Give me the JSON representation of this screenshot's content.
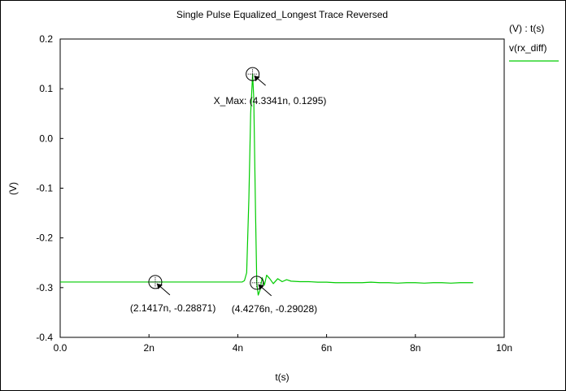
{
  "chart_data": {
    "type": "line",
    "title": "Single Pulse Equalized_Longest Trace Reversed",
    "xlabel": "t(s)",
    "ylabel": "(V)",
    "xlim": [
      0,
      10
    ],
    "ylim": [
      -0.4,
      0.2
    ],
    "x_ticks": [
      {
        "value": 0,
        "label": "0.0"
      },
      {
        "value": 2,
        "label": "2n"
      },
      {
        "value": 4,
        "label": "4n"
      },
      {
        "value": 6,
        "label": "6n"
      },
      {
        "value": 8,
        "label": "8n"
      },
      {
        "value": 10,
        "label": "10n"
      }
    ],
    "y_ticks": [
      {
        "value": 0.2,
        "label": "0.2"
      },
      {
        "value": 0.1,
        "label": "0.1"
      },
      {
        "value": 0.0,
        "label": "0.0"
      },
      {
        "value": -0.1,
        "label": "-0.1"
      },
      {
        "value": -0.2,
        "label": "-0.2"
      },
      {
        "value": -0.3,
        "label": "-0.3"
      },
      {
        "value": -0.4,
        "label": "-0.4"
      }
    ],
    "grid": false,
    "legend": {
      "placement": "right",
      "header": "(V) : t(s)",
      "entries": [
        {
          "name": "v(rx_diff)",
          "color": "#00cc00"
        }
      ]
    },
    "series": [
      {
        "name": "v(rx_diff)",
        "color": "#00cc00",
        "points": [
          [
            0.0,
            -0.2887
          ],
          [
            2.1417,
            -0.28871
          ],
          [
            4.0,
            -0.2887
          ],
          [
            4.1,
            -0.2886
          ],
          [
            4.15,
            -0.286
          ],
          [
            4.2,
            -0.27
          ],
          [
            4.25,
            -0.12
          ],
          [
            4.29,
            0.05
          ],
          [
            4.3341,
            0.1295
          ],
          [
            4.36,
            0.08
          ],
          [
            4.4,
            -0.15
          ],
          [
            4.4276,
            -0.29028
          ],
          [
            4.46,
            -0.315
          ],
          [
            4.5,
            -0.305
          ],
          [
            4.55,
            -0.28
          ],
          [
            4.6,
            -0.295
          ],
          [
            4.65,
            -0.275
          ],
          [
            4.72,
            -0.282
          ],
          [
            4.8,
            -0.292
          ],
          [
            4.9,
            -0.282
          ],
          [
            5.0,
            -0.288
          ],
          [
            5.1,
            -0.284
          ],
          [
            5.2,
            -0.287
          ],
          [
            5.4,
            -0.288
          ],
          [
            5.6,
            -0.288
          ],
          [
            5.8,
            -0.289
          ],
          [
            6.0,
            -0.289
          ],
          [
            6.2,
            -0.29
          ],
          [
            6.4,
            -0.29
          ],
          [
            6.6,
            -0.29
          ],
          [
            6.8,
            -0.29
          ],
          [
            7.0,
            -0.289
          ],
          [
            7.2,
            -0.29
          ],
          [
            7.4,
            -0.29
          ],
          [
            7.6,
            -0.291
          ],
          [
            7.8,
            -0.29
          ],
          [
            8.0,
            -0.29
          ],
          [
            8.2,
            -0.291
          ],
          [
            8.4,
            -0.29
          ],
          [
            8.6,
            -0.29
          ],
          [
            8.8,
            -0.291
          ],
          [
            9.0,
            -0.29
          ],
          [
            9.2,
            -0.29
          ],
          [
            9.3,
            -0.29
          ]
        ]
      }
    ],
    "annotations": [
      {
        "x": 4.3341,
        "y": 0.1295,
        "label": "X_Max: (4.3341n, 0.1295)"
      },
      {
        "x": 2.1417,
        "y": -0.28871,
        "label": "(2.1417n, -0.28871)"
      },
      {
        "x": 4.4276,
        "y": -0.29028,
        "label": "(4.4276n, -0.29028)"
      }
    ]
  }
}
